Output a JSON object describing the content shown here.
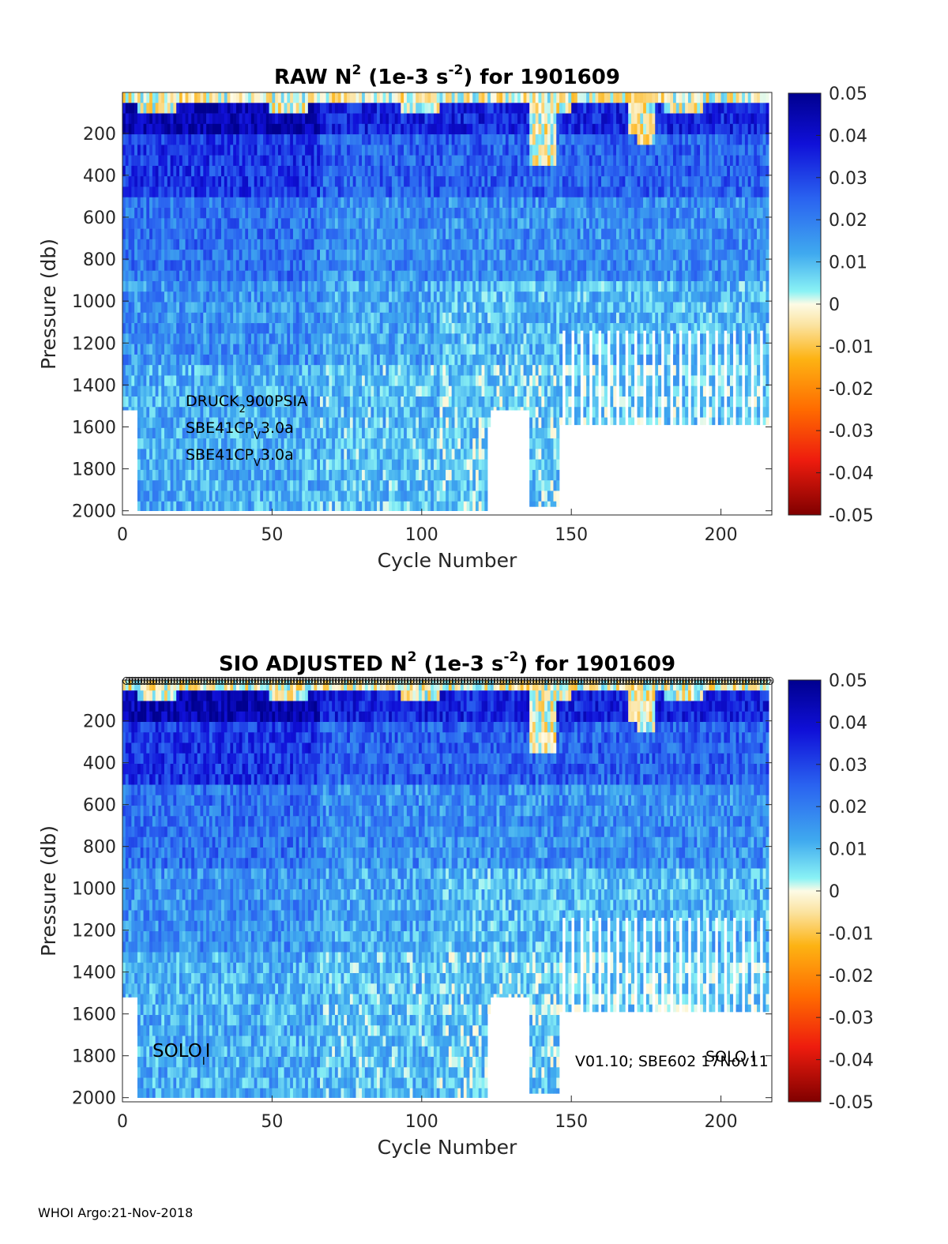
{
  "chart_data": [
    {
      "type": "heatmap",
      "title": {
        "prefix": "RAW N",
        "sup": "2",
        "mid": " (1e-3 s",
        "sup2": "-2",
        "suffix": ") for 1901609"
      },
      "xlabel": "Cycle Number",
      "ylabel": "Pressure (db)",
      "xlim": [
        0,
        217
      ],
      "ylim": [
        2020,
        5
      ],
      "x_ticks": [
        "0",
        "50",
        "100",
        "150",
        "200"
      ],
      "y_ticks": [
        "200",
        "400",
        "600",
        "800",
        "1000",
        "1200",
        "1400",
        "1600",
        "1800",
        "2000"
      ],
      "colorbar": {
        "range": [
          -0.05,
          0.05
        ],
        "ticks": [
          "0.05",
          "0.04",
          "0.03",
          "0.02",
          "0.01",
          "0",
          "-0.01",
          "-0.02",
          "-0.03",
          "-0.04",
          "-0.05"
        ]
      },
      "profile_max_pressure": {
        "cycles_1_4": 1520,
        "cycles_5_122": 2000,
        "cycles_123_135": 1520,
        "cycles_136_145": 1980,
        "cycles_146_216": 1590,
        "sparse_deep_extension": 1140
      },
      "annotations": [
        {
          "base": "DRUCK",
          "sub": "2",
          "rest": "900PSIA"
        },
        {
          "base": "SBE41CP",
          "sub": "V",
          "rest": "3.0a"
        },
        {
          "base": "SBE41CP",
          "sub": "V",
          "rest": "3.0a"
        }
      ]
    },
    {
      "type": "heatmap",
      "title": {
        "prefix": "SIO  ADJUSTED N",
        "sup": "2",
        "mid": " (1e-3 s",
        "sup2": "-2",
        "suffix": ") for 1901609"
      },
      "xlabel": "Cycle Number",
      "ylabel": "Pressure (db)",
      "xlim": [
        0,
        217
      ],
      "ylim": [
        2020,
        5
      ],
      "x_ticks": [
        "0",
        "50",
        "100",
        "150",
        "200"
      ],
      "y_ticks": [
        "200",
        "400",
        "600",
        "800",
        "1000",
        "1200",
        "1400",
        "1600",
        "1800",
        "2000"
      ],
      "colorbar": {
        "range": [
          -0.05,
          0.05
        ],
        "ticks": [
          "0.05",
          "0.04",
          "0.03",
          "0.02",
          "0.01",
          "0",
          "-0.01",
          "-0.02",
          "-0.03",
          "-0.04",
          "-0.05"
        ]
      },
      "qc_markers": "open circles along top, one per cycle",
      "annotations_left": {
        "base": "SOLO",
        "sub": "I",
        "rest": "I"
      },
      "annotations_right": [
        {
          "text": "SOLO I"
        },
        {
          "text": "V01.10; SBE602 17Nov11"
        }
      ]
    }
  ],
  "footer": "WHOI Argo:21-Nov-2018"
}
